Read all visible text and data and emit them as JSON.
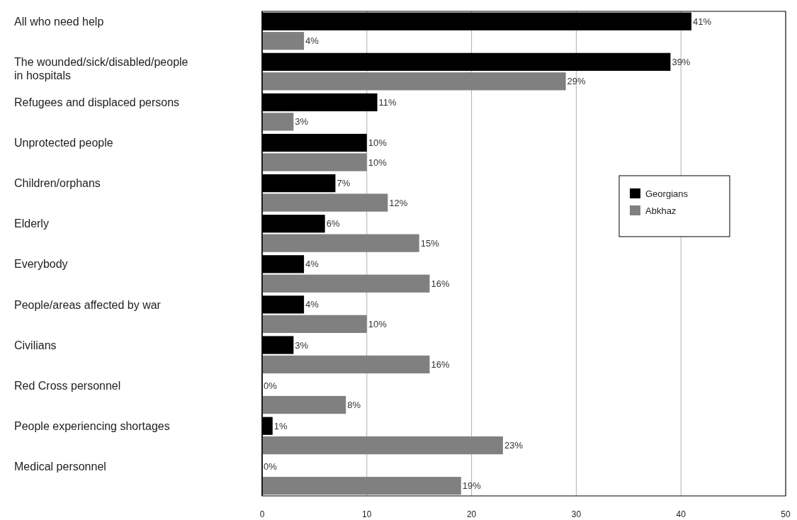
{
  "chart_data": {
    "type": "bar",
    "orientation": "horizontal",
    "categories": [
      "All who need help",
      "The wounded/sick/disabled/people in hospitals",
      "Refugees and displaced persons",
      "Unprotected people",
      "Children/orphans",
      "Elderly",
      "Everybody",
      "People/areas affected by war",
      "Civilians",
      "Red Cross personnel",
      "People experiencing shortages",
      "Medical personnel"
    ],
    "series": [
      {
        "name": "Georgians",
        "color": "#000000",
        "values": [
          41,
          39,
          11,
          10,
          7,
          6,
          4,
          4,
          3,
          0,
          1,
          0
        ],
        "value_labels": [
          "41%",
          "39%",
          "11%",
          "10%",
          "7%",
          "6%",
          "4%",
          "4%",
          "3%",
          "0%",
          "1%",
          "0%"
        ]
      },
      {
        "name": "Abkhaz",
        "color": "#808080",
        "values": [
          4,
          29,
          3,
          10,
          12,
          15,
          16,
          10,
          16,
          8,
          23,
          19
        ],
        "value_labels": [
          "4%",
          "29%",
          "3%",
          "10%",
          "12%",
          "15%",
          "16%",
          "10%",
          "16%",
          "8%",
          "23%",
          "19%"
        ]
      }
    ],
    "xlim": [
      0,
      50
    ],
    "xticks": [
      0,
      10,
      20,
      30,
      40,
      50
    ],
    "grid": "x",
    "legend": "right"
  }
}
